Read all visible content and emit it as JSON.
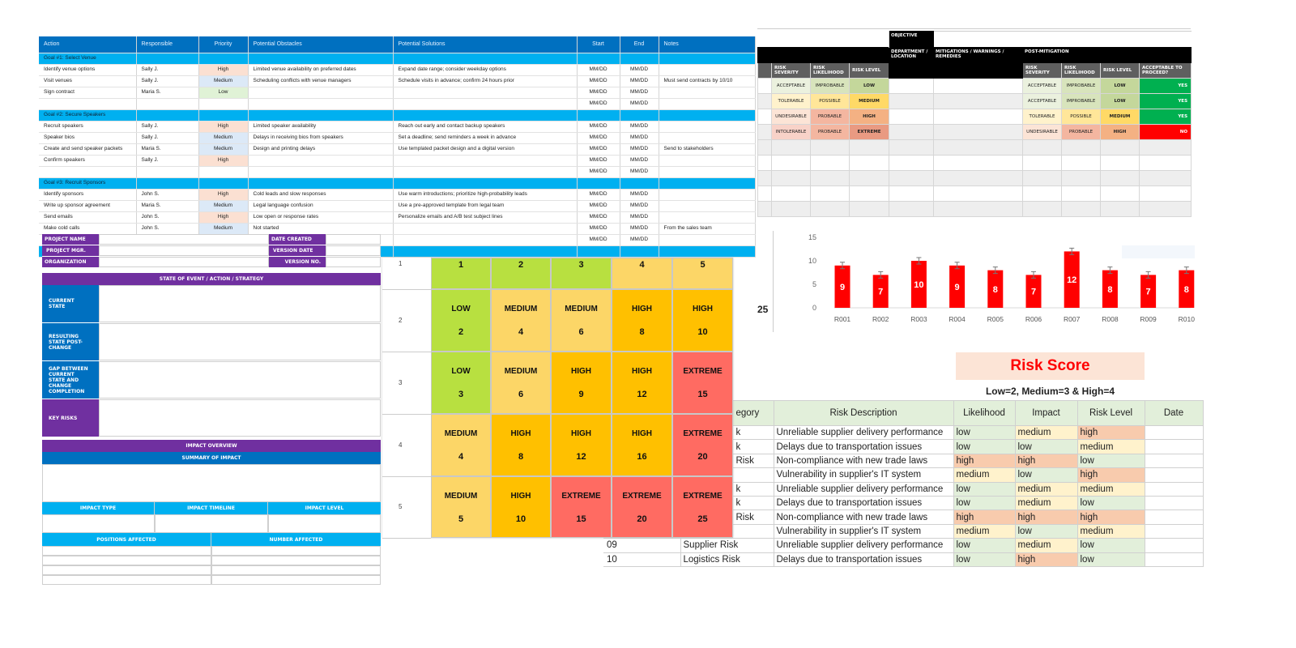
{
  "action_plan": {
    "headers": [
      "Action",
      "Responsible",
      "Priority",
      "Potential Obstacles",
      "Potential Solutions",
      "Start",
      "End",
      "Notes"
    ],
    "rows": [
      {
        "goal": "Goal #1:  Select Venue"
      },
      {
        "cells": [
          "Identify venue options",
          "Sally J.",
          "High",
          "Limited venue availability on preferred dates",
          "Expand date range; consider weekday options",
          "MM/DD",
          "MM/DD",
          ""
        ]
      },
      {
        "cells": [
          "Visit venues",
          "Sally J.",
          "Medium",
          "Scheduling conflicts with venue managers",
          "Schedule visits in advance; confirm 24 hours prior",
          "MM/DD",
          "MM/DD",
          "Must send contracts by 10/10"
        ]
      },
      {
        "cells": [
          "Sign contract",
          "Maria S.",
          "Low",
          "",
          "",
          "MM/DD",
          "MM/DD",
          ""
        ]
      },
      {
        "cells": [
          "",
          "",
          "",
          "",
          "",
          "MM/DD",
          "MM/DD",
          ""
        ]
      },
      {
        "goal": "Goal #2: Secure Speakers"
      },
      {
        "cells": [
          "Recruit speakers",
          "Sally J.",
          "High",
          "Limited speaker availability",
          "Reach out early and contact backup speakers",
          "MM/DD",
          "MM/DD",
          ""
        ]
      },
      {
        "cells": [
          "Speaker bios",
          "Sally J.",
          "Medium",
          "Delays in receiving bios from speakers",
          "Set a deadline; send reminders a week in advance",
          "MM/DD",
          "MM/DD",
          ""
        ]
      },
      {
        "cells": [
          "Create and send speaker packets",
          "Maria S.",
          "Medium",
          "Design and printing delays",
          "Use templated packet design and a digital version",
          "MM/DD",
          "MM/DD",
          "Send to stakeholders"
        ]
      },
      {
        "cells": [
          "Confirm speakers",
          "Sally J.",
          "High",
          "",
          "",
          "MM/DD",
          "MM/DD",
          ""
        ]
      },
      {
        "cells": [
          "",
          "",
          "",
          "",
          "",
          "MM/DD",
          "MM/DD",
          ""
        ]
      },
      {
        "goal": "Goal #3: Recruit Sponsors"
      },
      {
        "cells": [
          "Identify sponsors",
          "John S.",
          "High",
          "Cold leads and slow responses",
          "Use warm introductions; prioritize high-probability leads",
          "MM/DD",
          "MM/DD",
          ""
        ]
      },
      {
        "cells": [
          "Write up sponsor agreement",
          "Maria S.",
          "Medium",
          "Legal language confusion",
          "Use a pre-approved template from legal team",
          "MM/DD",
          "MM/DD",
          ""
        ]
      },
      {
        "cells": [
          "Send emails",
          "John S.",
          "High",
          "Low open or response rates",
          "Personalize emails and A/B test subject lines",
          "MM/DD",
          "MM/DD",
          ""
        ]
      },
      {
        "cells": [
          "Make cold calls",
          "John S.",
          "Medium",
          "Not started",
          "",
          "MM/DD",
          "MM/DD",
          "From the sales team"
        ]
      },
      {
        "cells": [
          "",
          "",
          "",
          "",
          "",
          "MM/DD",
          "MM/DD",
          ""
        ]
      },
      {
        "goal": ""
      }
    ]
  },
  "register": {
    "objective": "OBJECTIVE",
    "department": "DEPARTMENT / LOCATION",
    "mitigations": "MITIGATIONS / WARNINGS / REMEDIES",
    "post": "POST-MITIGATION",
    "sub": [
      "RISK SEVERITY",
      "RISK LIKELIHOOD",
      "RISK LEVEL"
    ],
    "post_sub": [
      "RISK SEVERITY",
      "RISK LIKELIHOOD",
      "RISK LEVEL",
      "ACCEPTABLE TO PROCEED?"
    ],
    "rows": [
      [
        "ACCEPTABLE",
        "IMPROBABLE",
        "LOW",
        "ACCEPTABLE",
        "IMPROBABLE",
        "LOW",
        "YES"
      ],
      [
        "TOLERABLE",
        "POSSIBLE",
        "MEDIUM",
        "ACCEPTABLE",
        "IMPROBABLE",
        "LOW",
        "YES"
      ],
      [
        "UNDESIRABLE",
        "PROBABLE",
        "HIGH",
        "TOLERABLE",
        "POSSIBLE",
        "MEDIUM",
        "YES"
      ],
      [
        "INTOLERABLE",
        "PROBABLE",
        "EXTREME",
        "UNDESIRABLE",
        "PROBABLE",
        "HIGH",
        "NO"
      ]
    ],
    "colors": {
      "ACCEPTABLE": "#ebf1de",
      "IMPROBABLE": "#d8e4bc",
      "LOW": "#c4d79b",
      "TOLERABLE": "#fff2cc",
      "POSSIBLE": "#ffe699",
      "MEDIUM": "#ffd966",
      "UNDESIRABLE": "#fce4d6",
      "PROBABLE": "#f4b6a0",
      "HIGH": "#f4b183",
      "INTOLERABLE": "#f8d2c8",
      "EXTREME": "#e99a82",
      "YES": "#00b050",
      "NO": "#ff0000"
    }
  },
  "form": {
    "project_name": "PROJECT NAME",
    "project_mgr": "PROJECT MGR.",
    "organization": "ORGANIZATION",
    "date_created": "DATE CREATED",
    "version_date": "VERSION DATE",
    "version_no": "VERSION NO.",
    "state_header": "STATE OF EVENT / ACTION / STRATEGY",
    "current_state": "CURRENT STATE",
    "resulting_state": "RESULTING STATE POST-CHANGE",
    "gap": "GAP BETWEEN CURRENT STATE AND CHANGE COMPLETION",
    "key_risks": "KEY RISKS",
    "impact_overview": "IMPACT OVERVIEW",
    "summary": "SUMMARY OF IMPACT",
    "impact_type": "IMPACT TYPE",
    "impact_timeline": "IMPACT TIMELINE",
    "impact_level": "IMPACT LEVEL",
    "positions": "POSITIONS AFFECTED",
    "number": "NUMBER AFFECTED"
  },
  "matrix": {
    "row_labels": [
      "1",
      "2",
      "3",
      "4",
      "5"
    ],
    "cells": [
      [
        {
          "l": "",
          "n": "1"
        },
        {
          "l": "",
          "n": "2"
        },
        {
          "l": "",
          "n": "3"
        },
        {
          "l": "",
          "n": "4"
        },
        {
          "l": "",
          "n": "5"
        }
      ],
      [
        {
          "l": "LOW",
          "n": "2"
        },
        {
          "l": "MEDIUM",
          "n": "4"
        },
        {
          "l": "MEDIUM",
          "n": "6"
        },
        {
          "l": "HIGH",
          "n": "8"
        },
        {
          "l": "HIGH",
          "n": "10"
        }
      ],
      [
        {
          "l": "LOW",
          "n": "3"
        },
        {
          "l": "MEDIUM",
          "n": "6"
        },
        {
          "l": "HIGH",
          "n": "9"
        },
        {
          "l": "HIGH",
          "n": "12"
        },
        {
          "l": "EXTREME",
          "n": "15"
        }
      ],
      [
        {
          "l": "MEDIUM",
          "n": "4"
        },
        {
          "l": "HIGH",
          "n": "8"
        },
        {
          "l": "HIGH",
          "n": "12"
        },
        {
          "l": "HIGH",
          "n": "16"
        },
        {
          "l": "EXTREME",
          "n": "20"
        }
      ],
      [
        {
          "l": "MEDIUM",
          "n": "5"
        },
        {
          "l": "HIGH",
          "n": "10"
        },
        {
          "l": "EXTREME",
          "n": "15"
        },
        {
          "l": "EXTREME",
          "n": "20"
        },
        {
          "l": "EXTREME",
          "n": "25"
        }
      ]
    ],
    "top_row_colors": [
      "#b8e040",
      "#b8e040",
      "#b8e040",
      "#fcd667",
      "#fcd667"
    ],
    "level_colors": {
      "LOW": "#b8e040",
      "MEDIUM": "#fcd667",
      "HIGH": "#ffc000",
      "EXTREME": "#ff6b62"
    }
  },
  "side_value": "25",
  "chart_data": {
    "type": "bar",
    "categories": [
      "R001",
      "R002",
      "R003",
      "R004",
      "R005",
      "R006",
      "R007",
      "R008",
      "R009",
      "R010"
    ],
    "values": [
      9,
      7,
      10,
      9,
      8,
      7,
      12,
      8,
      7,
      8
    ],
    "ylim": [
      0,
      15
    ],
    "yticks": [
      0,
      5,
      10,
      15
    ],
    "color": "#ff0000",
    "error_bars": true,
    "data_labels": true
  },
  "risk_score": {
    "title": "Risk Score",
    "subtitle": "Low=2, Medium=3 & High=4",
    "headers": [
      "",
      "egory",
      "Risk Description",
      "Likelihood",
      "Impact",
      "Risk Level",
      "Date"
    ],
    "rows": [
      [
        "",
        "k",
        "Unreliable supplier delivery performance",
        "low",
        "medium",
        "high"
      ],
      [
        "",
        "k",
        "Delays due to transportation issues",
        "low",
        "low",
        "medium"
      ],
      [
        "",
        "Risk",
        "Non-compliance with new trade laws",
        "high",
        "high",
        "low"
      ],
      [
        "",
        "",
        "Vulnerability in supplier's IT system",
        "medium",
        "low",
        "high"
      ],
      [
        "",
        "k",
        "Unreliable supplier delivery performance",
        "low",
        "medium",
        "medium"
      ],
      [
        "",
        "k",
        "Delays due to transportation issues",
        "low",
        "medium",
        "low"
      ],
      [
        "",
        "Risk",
        "Non-compliance with new trade laws",
        "high",
        "high",
        "high"
      ],
      [
        "",
        "",
        "Vulnerability in supplier's IT system",
        "medium",
        "low",
        "medium"
      ],
      [
        "09",
        "Supplier Risk",
        "Unreliable supplier delivery performance",
        "low",
        "medium",
        "low"
      ],
      [
        "10",
        "Logistics Risk",
        "Delays due to transportation issues",
        "low",
        "high",
        "low"
      ]
    ]
  }
}
